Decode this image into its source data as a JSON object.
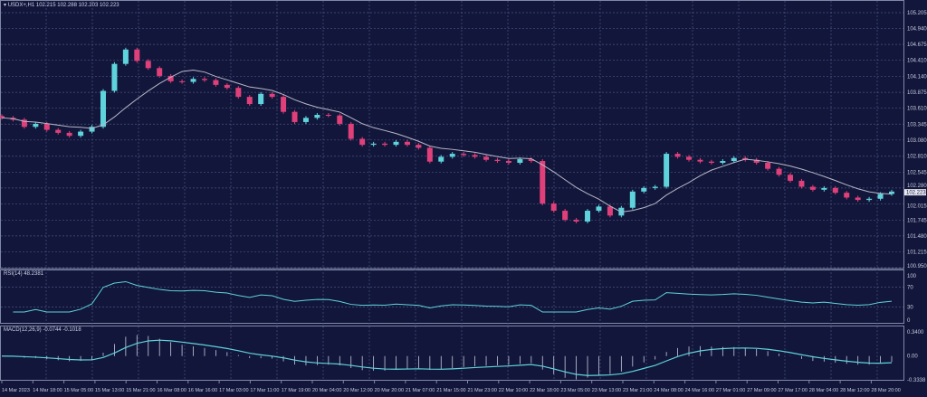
{
  "header": {
    "symbol_label": "USDX+,H1",
    "ohlc": "102.215 102.288 102.203 102.223"
  },
  "rsi_label": "RSI(14) 48.2381",
  "macd_label": "MACD(12,26,9) -0.0744 -0.1018",
  "colors": {
    "background": "#12163a",
    "grid": "#4a5384",
    "bull": "#5fd3dc",
    "bear": "#e0407a",
    "ma": "#b8b8c8",
    "indicator": "#5fd3dc",
    "volume": "#a0306a"
  },
  "chart_data": [
    {
      "type": "candlestick",
      "title": "USDX+,H1",
      "ylim": [
        100.95,
        105.205
      ],
      "y_ticks": [
        "105.205",
        "104.940",
        "104.675",
        "104.410",
        "104.140",
        "103.875",
        "103.610",
        "103.345",
        "103.080",
        "102.810",
        "102.545",
        "102.280",
        "102.015",
        "101.745",
        "101.480",
        "101.215",
        "100.950"
      ],
      "current_price": "102.223",
      "x_ticks": [
        "14 Mar 2023",
        "14 Mar 18:00",
        "15 Mar 05:00",
        "15 Mar 13:00",
        "15 Mar 21:00",
        "16 Mar 08:00",
        "16 Mar 16:00",
        "17 Mar 03:00",
        "17 Mar 11:00",
        "17 Mar 19:00",
        "20 Mar 04:00",
        "20 Mar 12:00",
        "20 Mar 20:00",
        "21 Mar 07:00",
        "21 Mar 15:00",
        "21 Mar 23:00",
        "22 Mar 10:00",
        "22 Mar 18:00",
        "23 Mar 05:00",
        "23 Mar 13:00",
        "23 Mar 21:00",
        "24 Mar 08:00",
        "24 Mar 16:00",
        "27 Mar 01:00",
        "27 Mar 09:00",
        "27 Mar 17:00",
        "28 Mar 04:00",
        "28 Mar 12:00",
        "28 Mar 20:00"
      ],
      "closes": [
        103.45,
        103.42,
        103.3,
        103.35,
        103.25,
        103.2,
        103.15,
        103.22,
        103.3,
        103.9,
        104.35,
        104.59,
        104.4,
        104.28,
        104.15,
        104.06,
        104.05,
        104.1,
        104.08,
        104.0,
        103.95,
        103.8,
        103.68,
        103.85,
        103.8,
        103.55,
        103.38,
        103.45,
        103.5,
        103.49,
        103.35,
        103.1,
        103.0,
        103.02,
        103.0,
        103.05,
        103.0,
        102.95,
        102.72,
        102.8,
        102.85,
        102.83,
        102.8,
        102.75,
        102.73,
        102.7,
        102.76,
        102.73,
        102.02,
        101.9,
        101.75,
        101.72,
        101.9,
        101.97,
        101.82,
        101.95,
        102.22,
        102.28,
        102.3,
        102.85,
        102.8,
        102.75,
        102.72,
        102.7,
        102.73,
        102.78,
        102.75,
        102.7,
        102.6,
        102.5,
        102.4,
        102.3,
        102.25,
        102.28,
        102.2,
        102.12,
        102.08,
        102.1,
        102.18,
        102.22
      ],
      "moving_average": true,
      "grid": true
    },
    {
      "type": "line",
      "title": "RSI(14)",
      "ylim": [
        0,
        100
      ],
      "y_ticks": [
        "100",
        "70",
        "30",
        "0"
      ],
      "current_value": 48.2381
    },
    {
      "type": "bar+line",
      "title": "MACD(12,26,9)",
      "ylim": [
        -0.3338,
        0.34
      ],
      "y_ticks": [
        "0.3400",
        "0.00",
        "-0.3338"
      ],
      "main": -0.0744,
      "signal": -0.1018
    }
  ]
}
